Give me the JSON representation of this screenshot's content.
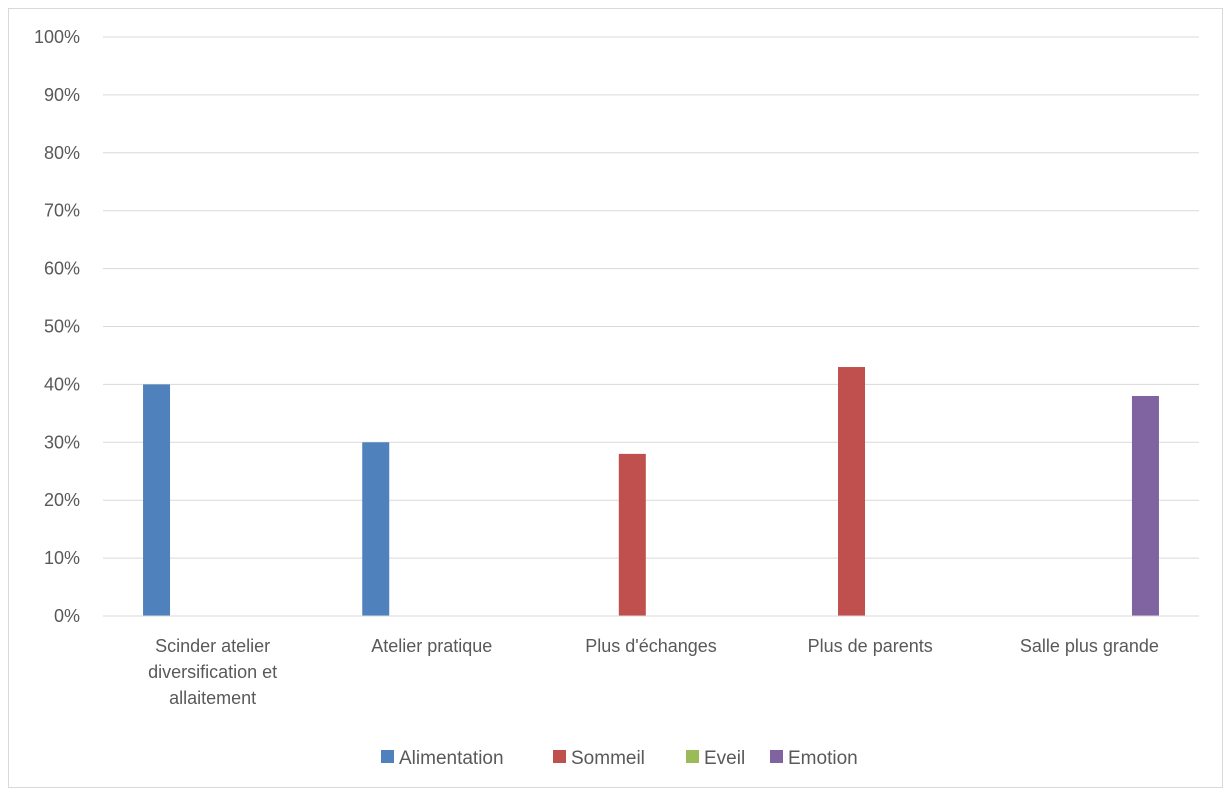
{
  "chart_data": {
    "type": "bar",
    "title": "",
    "xlabel": "",
    "ylabel": "",
    "ylim": [
      0,
      100
    ],
    "y_ticks": [
      0,
      10,
      20,
      30,
      40,
      50,
      60,
      70,
      80,
      90,
      100
    ],
    "y_tick_format": "percent",
    "grid": true,
    "legend_position": "bottom",
    "categories": [
      "Scinder atelier diversification et allaitement",
      "Atelier pratique",
      "Plus d'échanges",
      "Plus de parents",
      "Salle plus grande"
    ],
    "category_label_lines": [
      [
        "Scinder atelier",
        "diversification et",
        "allaitement"
      ],
      [
        "Atelier pratique"
      ],
      [
        "Plus d'échanges"
      ],
      [
        "Plus de parents"
      ],
      [
        "Salle plus grande"
      ]
    ],
    "series": [
      {
        "name": "Alimentation",
        "color": "#4f81bd",
        "values": [
          40,
          30,
          null,
          null,
          null
        ]
      },
      {
        "name": "Sommeil",
        "color": "#c0504d",
        "values": [
          null,
          null,
          28,
          43,
          null
        ]
      },
      {
        "name": "Eveil",
        "color": "#9bbb59",
        "values": [
          null,
          null,
          null,
          null,
          null
        ]
      },
      {
        "name": "Emotion",
        "color": "#8064a2",
        "values": [
          null,
          null,
          null,
          null,
          38
        ]
      }
    ]
  }
}
